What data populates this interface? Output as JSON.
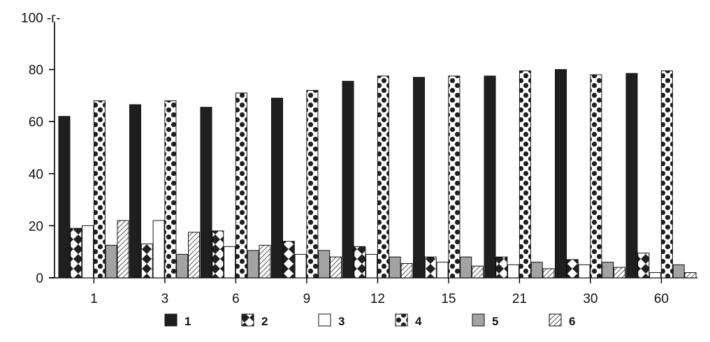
{
  "chart_data": {
    "type": "bar",
    "title": "",
    "xlabel": "",
    "ylabel": "",
    "y_top_label": "100 -г-",
    "ylim": [
      0,
      100
    ],
    "yticks": [
      0,
      20,
      40,
      60,
      80
    ],
    "categories": [
      "1",
      "3",
      "6",
      "9",
      "12",
      "15",
      "21",
      "30",
      "60"
    ],
    "legend_position": "bottom",
    "series": [
      {
        "name": "1",
        "pattern": "solid-dark",
        "values": [
          62,
          66.5,
          65.5,
          69,
          75.5,
          77,
          77.5,
          80,
          78.5
        ]
      },
      {
        "name": "2",
        "pattern": "diamond",
        "values": [
          19,
          13,
          18,
          14,
          12,
          8,
          8,
          7,
          9.5
        ]
      },
      {
        "name": "3",
        "pattern": "white",
        "values": [
          20,
          22,
          12,
          9,
          9,
          6,
          5,
          5,
          2
        ]
      },
      {
        "name": "4",
        "pattern": "dots",
        "values": [
          68,
          68,
          71,
          72,
          77.5,
          77.5,
          79.5,
          78,
          79.5
        ]
      },
      {
        "name": "5",
        "pattern": "gray",
        "values": [
          12.5,
          9,
          10.5,
          10.5,
          8,
          8,
          6,
          6,
          5
        ]
      },
      {
        "name": "6",
        "pattern": "hatched",
        "values": [
          22,
          17.5,
          12.5,
          8,
          5.5,
          4.5,
          3.5,
          4,
          2
        ]
      }
    ],
    "colors": {
      "dark": "#1f1f1f",
      "gray": "#a3a3a3",
      "axis": "#000000"
    }
  }
}
